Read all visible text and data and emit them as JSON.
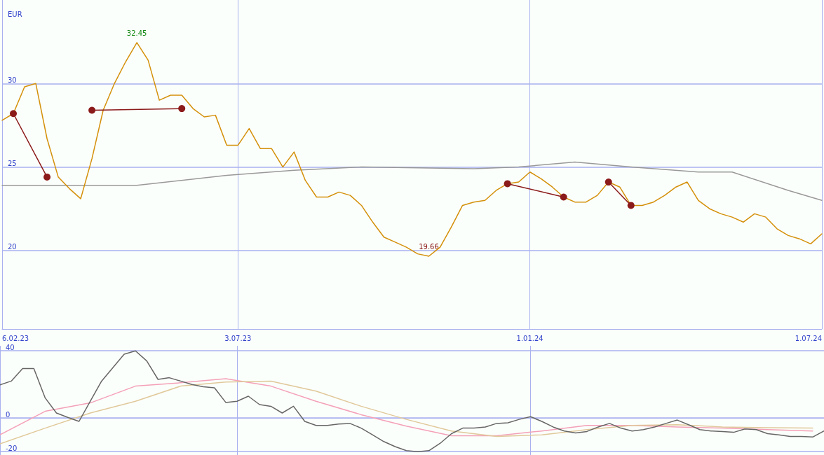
{
  "chart_data": [
    {
      "type": "line",
      "ylabel": "EUR",
      "annotations": [
        {
          "text": "32.45",
          "x": "2023-05-01",
          "y": 32.45
        },
        {
          "text": "19.66",
          "x": "2023-10-30",
          "y": 19.66
        }
      ],
      "xlim": [
        "2023-02-06",
        "2024-07-01"
      ],
      "xticks": [
        {
          "value": "2023-02-06",
          "label": "6.02.23"
        },
        {
          "value": "2023-07-03",
          "label": "3.07.23"
        },
        {
          "value": "2024-01-01",
          "label": "1.01.24"
        },
        {
          "value": "2024-07-01",
          "label": "1.07.24"
        }
      ],
      "ylim": [
        15.3,
        35
      ],
      "yticks": [
        20,
        25,
        30
      ],
      "grid": true,
      "line_style": "solid",
      "x": [
        "2023-02-06",
        "2023-02-13",
        "2023-02-20",
        "2023-02-27",
        "2023-03-06",
        "2023-03-13",
        "2023-03-20",
        "2023-03-27",
        "2023-04-03",
        "2023-04-10",
        "2023-04-17",
        "2023-04-24",
        "2023-05-01",
        "2023-05-08",
        "2023-05-15",
        "2023-05-22",
        "2023-05-29",
        "2023-06-05",
        "2023-06-12",
        "2023-06-19",
        "2023-06-26",
        "2023-07-03",
        "2023-07-10",
        "2023-07-17",
        "2023-07-24",
        "2023-07-31",
        "2023-08-07",
        "2023-08-14",
        "2023-08-21",
        "2023-08-28",
        "2023-09-04",
        "2023-09-11",
        "2023-09-18",
        "2023-09-25",
        "2023-10-02",
        "2023-10-09",
        "2023-10-16",
        "2023-10-23",
        "2023-10-30",
        "2023-11-06",
        "2023-11-13",
        "2023-11-20",
        "2023-11-27",
        "2023-12-04",
        "2023-12-11",
        "2023-12-18",
        "2023-12-25",
        "2024-01-01",
        "2024-01-08",
        "2024-01-15",
        "2024-01-22",
        "2024-01-29",
        "2024-02-05",
        "2024-02-12",
        "2024-02-19",
        "2024-02-26",
        "2024-03-04",
        "2024-03-11",
        "2024-03-18",
        "2024-03-25",
        "2024-04-01",
        "2024-04-08",
        "2024-04-15",
        "2024-04-22",
        "2024-04-29",
        "2024-05-06",
        "2024-05-13",
        "2024-05-20",
        "2024-05-27",
        "2024-06-03",
        "2024-06-10",
        "2024-06-17",
        "2024-06-24",
        "2024-07-01"
      ],
      "series": [
        {
          "color": "#999999",
          "x": [
            "2023-02-06",
            "2023-05-01",
            "2023-06-26",
            "2023-08-07",
            "2023-09-18",
            "2023-11-27",
            "2023-12-25",
            "2024-01-29",
            "2024-03-04",
            "2024-04-15",
            "2024-05-06",
            "2024-06-10",
            "2024-07-01"
          ],
          "values": [
            23.9,
            23.9,
            24.5,
            24.8,
            25.0,
            24.9,
            25.0,
            25.3,
            25.0,
            24.7,
            24.7,
            23.6,
            23.0
          ]
        },
        {
          "color": "#d4900a",
          "values": [
            27.8,
            28.2,
            29.8,
            30.0,
            26.7,
            24.4,
            23.7,
            23.1,
            25.5,
            28.4,
            30.0,
            31.3,
            32.45,
            31.4,
            29.0,
            29.3,
            29.3,
            28.5,
            28.0,
            28.1,
            26.3,
            26.3,
            27.3,
            26.1,
            26.1,
            25.0,
            25.9,
            24.2,
            23.2,
            23.2,
            23.5,
            23.3,
            22.7,
            21.7,
            20.8,
            20.5,
            20.2,
            19.8,
            19.66,
            20.2,
            21.4,
            22.7,
            22.9,
            23.0,
            23.6,
            24.0,
            24.1,
            24.7,
            24.3,
            23.8,
            23.2,
            22.9,
            22.9,
            23.3,
            24.1,
            23.8,
            22.7,
            22.7,
            22.9,
            23.3,
            23.8,
            24.1,
            23.0,
            22.5,
            22.2,
            22.0,
            21.7,
            22.2,
            22.0,
            21.3,
            20.9,
            20.7,
            20.4,
            21.0
          ]
        },
        {
          "color": "#8b1a1a",
          "marker": "circle",
          "x": [
            "2023-02-13",
            "2023-03-06"
          ],
          "values": [
            28.2,
            24.4
          ]
        },
        {
          "color": "#8b1a1a",
          "marker": "circle",
          "x": [
            "2023-04-03",
            "2023-05-29"
          ],
          "values": [
            28.4,
            28.5
          ]
        },
        {
          "color": "#8b1a1a",
          "marker": "circle",
          "x": [
            "2023-12-18",
            "2024-01-22"
          ],
          "values": [
            24.0,
            23.2
          ]
        },
        {
          "color": "#8b1a1a",
          "marker": "circle",
          "x": [
            "2024-02-19",
            "2024-03-04"
          ],
          "values": [
            24.1,
            22.7
          ]
        }
      ]
    },
    {
      "type": "line",
      "tick_labels": "y",
      "grid": true,
      "line_style": "solid",
      "xlim": [
        "2023-02-06",
        "2024-07-01"
      ],
      "xticks": [
        {
          "value": "2023-02-06",
          "label": null
        },
        {
          "value": "2023-07-03",
          "label": null
        },
        {
          "value": "2024-01-01",
          "label": null
        },
        {
          "value": "2024-07-01",
          "label": null
        }
      ],
      "ylim": [
        -22,
        43
      ],
      "yticks": [
        -20,
        0,
        40
      ],
      "x": [
        "2023-02-06",
        "2023-02-13",
        "2023-02-20",
        "2023-02-27",
        "2023-03-06",
        "2023-03-13",
        "2023-03-20",
        "2023-03-27",
        "2023-04-03",
        "2023-04-10",
        "2023-04-17",
        "2023-04-24",
        "2023-05-01",
        "2023-05-08",
        "2023-05-15",
        "2023-05-22",
        "2023-05-29",
        "2023-06-05",
        "2023-06-12",
        "2023-06-19",
        "2023-06-26",
        "2023-07-03",
        "2023-07-10",
        "2023-07-17",
        "2023-07-24",
        "2023-07-31",
        "2023-08-07",
        "2023-08-14",
        "2023-08-21",
        "2023-08-28",
        "2023-09-04",
        "2023-09-11",
        "2023-09-18",
        "2023-09-25",
        "2023-10-02",
        "2023-10-09",
        "2023-10-16",
        "2023-10-23",
        "2023-10-30",
        "2023-11-06",
        "2023-11-13",
        "2023-11-20",
        "2023-11-27",
        "2023-12-04",
        "2023-12-11",
        "2023-12-18",
        "2023-12-25",
        "2024-01-01",
        "2024-01-08",
        "2024-01-15",
        "2024-01-22",
        "2024-01-29",
        "2024-02-05",
        "2024-02-12",
        "2024-02-19",
        "2024-02-26",
        "2024-03-04",
        "2024-03-11",
        "2024-03-18",
        "2024-03-25",
        "2024-04-01",
        "2024-04-08",
        "2024-04-15",
        "2024-04-22",
        "2024-04-29",
        "2024-05-06",
        "2024-05-13",
        "2024-05-20",
        "2024-05-27",
        "2024-06-03",
        "2024-06-10",
        "2024-06-17",
        "2024-06-24",
        "2024-07-01"
      ],
      "series": [
        {
          "color": "#f4a0b8",
          "x": [
            "2023-02-06",
            "2023-03-06",
            "2023-04-03",
            "2023-05-01",
            "2023-05-29",
            "2023-06-26",
            "2023-07-24",
            "2023-08-21",
            "2023-09-18",
            "2023-10-16",
            "2023-11-13",
            "2023-12-11",
            "2024-01-08",
            "2024-02-05",
            "2024-03-04",
            "2024-04-01",
            "2024-04-29",
            "2024-05-27",
            "2024-06-24"
          ],
          "values": [
            -10,
            4,
            9,
            19,
            21,
            23.4,
            19,
            10,
            2,
            -4.8,
            -10.5,
            -10.5,
            -7.7,
            -4.4,
            -4.4,
            -5.3,
            -6,
            -6.9,
            -7.7
          ]
        },
        {
          "color": "#e0c89a",
          "x": [
            "2023-02-06",
            "2023-03-06",
            "2023-04-03",
            "2023-05-01",
            "2023-05-29",
            "2023-06-26",
            "2023-07-24",
            "2023-08-21",
            "2023-09-18",
            "2023-10-16",
            "2023-11-13",
            "2023-12-11",
            "2024-01-08",
            "2024-02-05",
            "2024-03-04",
            "2024-04-01",
            "2024-04-29",
            "2024-05-27",
            "2024-06-24"
          ],
          "values": [
            -15.4,
            -6,
            3,
            10,
            19,
            21.4,
            22,
            16,
            7,
            -0.8,
            -7.7,
            -11,
            -10,
            -6.9,
            -4.4,
            -4,
            -5.3,
            -5.7,
            -6
          ]
        },
        {
          "color": "#666666",
          "values": [
            19.8,
            22,
            29.5,
            29.5,
            12,
            3,
            0.4,
            -2,
            10,
            22,
            30,
            38,
            40,
            34,
            23,
            24,
            22,
            20,
            18.6,
            18,
            9.3,
            10,
            13,
            8,
            7,
            3,
            7,
            -2,
            -4.4,
            -4.4,
            -3.6,
            -3.2,
            -6,
            -10,
            -14,
            -17,
            -19.4,
            -20,
            -19.4,
            -15,
            -9.3,
            -6,
            -6,
            -5.3,
            -3.2,
            -2.8,
            -0.8,
            0.8,
            -2,
            -5.3,
            -7.7,
            -8.9,
            -8,
            -5.3,
            -3.2,
            -6,
            -7.7,
            -6.9,
            -5.3,
            -3.2,
            -1.2,
            -4,
            -6.9,
            -7.7,
            -8,
            -8.5,
            -6.5,
            -6.9,
            -9.3,
            -10,
            -11,
            -11,
            -11.3,
            -7.7
          ]
        }
      ]
    }
  ]
}
